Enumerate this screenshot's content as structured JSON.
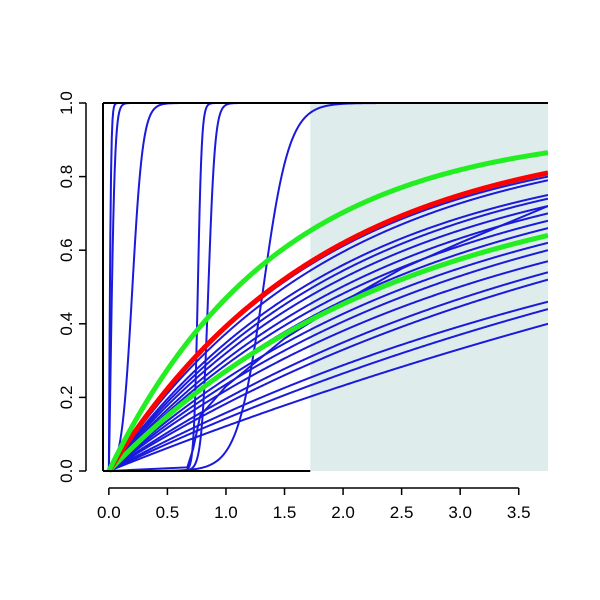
{
  "chart_data": {
    "type": "line",
    "title": "",
    "xlabel": "",
    "ylabel": "",
    "xlim": [
      -0.05,
      3.75
    ],
    "ylim": [
      0,
      1
    ],
    "grid": false,
    "legend": "none",
    "x_ticks": [
      "0.0",
      "0.5",
      "1.0",
      "1.5",
      "2.0",
      "2.5",
      "3.0",
      "3.5"
    ],
    "x_tick_values": [
      0,
      0.5,
      1,
      1.5,
      2,
      2.5,
      3,
      3.5
    ],
    "y_ticks": [
      "0.0",
      "0.2",
      "0.4",
      "0.6",
      "0.8",
      "1.0"
    ],
    "y_tick_values": [
      0,
      0.2,
      0.4,
      0.6,
      0.8,
      1
    ],
    "shaded_region": {
      "x_from": 1.72,
      "x_to": 3.75,
      "y_from": 0,
      "y_to": 1,
      "color": "#dfecec"
    },
    "colors": {
      "blue": "#1a1adc",
      "red": "#ff0000",
      "green": "#22ee22",
      "axis": "#000000"
    },
    "sigmoid_curves": [
      {
        "midpoint": 0.0,
        "steepness": 120,
        "color": "blue"
      },
      {
        "midpoint": 0.015,
        "steepness": 55,
        "color": "blue"
      },
      {
        "midpoint": 0.2,
        "steepness": 22,
        "color": "blue"
      },
      {
        "midpoint": 0.76,
        "steepness": 60,
        "color": "blue"
      },
      {
        "midpoint": 0.85,
        "steepness": 35,
        "color": "blue"
      },
      {
        "midpoint": 1.32,
        "steepness": 9,
        "color": "blue"
      }
    ],
    "ramp_curves": [
      {
        "x": [
          0,
          0.67,
          0.72,
          0.78,
          1.0,
          1.5,
          2.0,
          2.5,
          3.0,
          3.75
        ],
        "y": [
          0,
          0.01,
          0.06,
          0.15,
          0.23,
          0.36,
          0.46,
          0.55,
          0.62,
          0.72
        ],
        "color": "blue"
      }
    ],
    "saturating_curves": [
      {
        "y_end": 0.4,
        "curvature": 0.1,
        "color": "blue"
      },
      {
        "y_end": 0.44,
        "curvature": 0.15,
        "color": "blue"
      },
      {
        "y_end": 0.46,
        "curvature": 0.2,
        "color": "blue"
      },
      {
        "y_end": 0.52,
        "curvature": 0.22,
        "color": "blue"
      },
      {
        "y_end": 0.54,
        "curvature": 0.25,
        "color": "blue"
      },
      {
        "y_end": 0.57,
        "curvature": 0.3,
        "color": "blue"
      },
      {
        "y_end": 0.6,
        "curvature": 0.32,
        "color": "blue"
      },
      {
        "y_end": 0.62,
        "curvature": 0.35,
        "color": "blue"
      },
      {
        "y_end": 0.66,
        "curvature": 0.38,
        "color": "blue"
      },
      {
        "y_end": 0.68,
        "curvature": 0.4,
        "color": "blue"
      },
      {
        "y_end": 0.7,
        "curvature": 0.42,
        "color": "blue"
      },
      {
        "y_end": 0.72,
        "curvature": 0.45,
        "color": "blue"
      },
      {
        "y_end": 0.74,
        "curvature": 0.47,
        "color": "blue"
      },
      {
        "y_end": 0.75,
        "curvature": 0.5,
        "color": "blue"
      },
      {
        "y_end": 0.79,
        "curvature": 0.52,
        "color": "blue"
      },
      {
        "y_end": 0.8,
        "curvature": 0.55,
        "color": "blue"
      },
      {
        "y_end": 0.64,
        "curvature": 0.4,
        "color": "green",
        "thick": true
      },
      {
        "y_end": 0.81,
        "curvature": 0.55,
        "color": "red",
        "thick": true
      },
      {
        "y_end": 0.865,
        "curvature": 0.7,
        "color": "green",
        "thick": true
      }
    ]
  }
}
